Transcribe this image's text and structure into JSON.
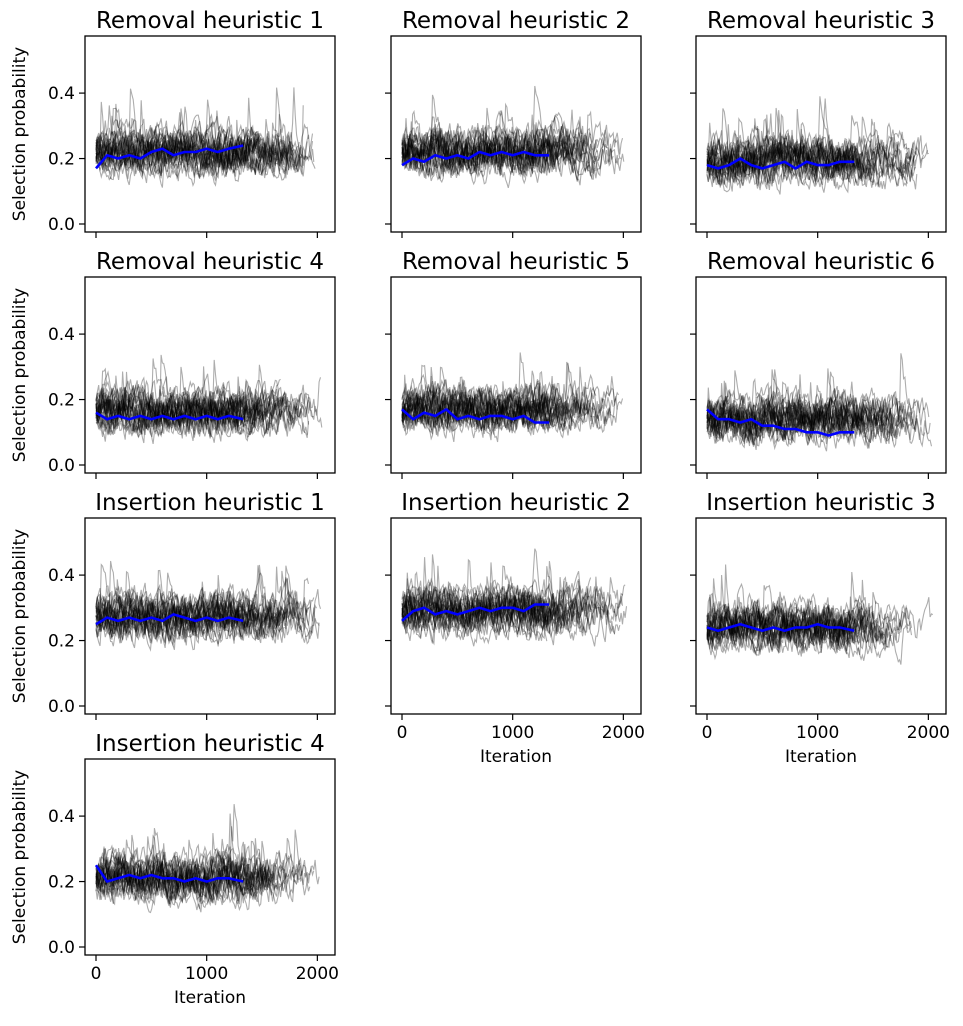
{
  "figure": {
    "ylabel": "Selection probability",
    "xlabel": "Iteration"
  },
  "chart_data": [
    {
      "type": "line",
      "title": "Removal heuristic 1",
      "xlim": [
        0,
        2060
      ],
      "ylim": [
        0,
        0.55
      ],
      "xticks": [
        0,
        1000,
        2000
      ],
      "yticks": [
        0.0,
        0.2,
        0.4
      ],
      "show_xtick_labels": false,
      "show_ytick_labels": true,
      "xlabel": "",
      "ylabel": "Selection probability",
      "series": [
        {
          "color": "#0000ff",
          "x": [
            0,
            100,
            200,
            300,
            400,
            500,
            600,
            700,
            800,
            900,
            1000,
            1100,
            1200,
            1330
          ],
          "y": [
            0.17,
            0.21,
            0.2,
            0.21,
            0.2,
            0.22,
            0.23,
            0.21,
            0.22,
            0.22,
            0.23,
            0.22,
            0.23,
            0.24
          ]
        }
      ],
      "background_runs": {
        "color": "#000000",
        "mean": 0.22,
        "spread": 0.05,
        "x_max": 2050,
        "min_value": 0.03
      }
    },
    {
      "type": "line",
      "title": "Removal heuristic 2",
      "xlim": [
        0,
        2060
      ],
      "ylim": [
        0,
        0.55
      ],
      "xticks": [
        0,
        1000,
        2000
      ],
      "yticks": [
        0.0,
        0.2,
        0.4
      ],
      "show_xtick_labels": false,
      "show_ytick_labels": false,
      "xlabel": "",
      "ylabel": "",
      "series": [
        {
          "color": "#0000ff",
          "x": [
            0,
            100,
            200,
            300,
            400,
            500,
            600,
            700,
            800,
            900,
            1000,
            1100,
            1200,
            1330
          ],
          "y": [
            0.18,
            0.2,
            0.19,
            0.21,
            0.2,
            0.21,
            0.2,
            0.22,
            0.21,
            0.22,
            0.21,
            0.22,
            0.21,
            0.21
          ]
        }
      ],
      "background_runs": {
        "color": "#000000",
        "mean": 0.22,
        "spread": 0.05,
        "x_max": 2050,
        "min_value": 0.0
      }
    },
    {
      "type": "line",
      "title": "Removal heuristic 3",
      "xlim": [
        0,
        2060
      ],
      "ylim": [
        0,
        0.55
      ],
      "xticks": [
        0,
        1000,
        2000
      ],
      "yticks": [
        0.0,
        0.2,
        0.4
      ],
      "show_xtick_labels": false,
      "show_ytick_labels": false,
      "xlabel": "",
      "ylabel": "",
      "series": [
        {
          "color": "#0000ff",
          "x": [
            0,
            100,
            200,
            300,
            400,
            500,
            600,
            700,
            800,
            900,
            1000,
            1100,
            1200,
            1330
          ],
          "y": [
            0.18,
            0.17,
            0.18,
            0.2,
            0.18,
            0.17,
            0.18,
            0.19,
            0.17,
            0.19,
            0.18,
            0.18,
            0.19,
            0.19
          ]
        }
      ],
      "background_runs": {
        "color": "#000000",
        "mean": 0.19,
        "spread": 0.05,
        "x_max": 2050,
        "min_value": 0.05
      }
    },
    {
      "type": "line",
      "title": "Removal heuristic 4",
      "xlim": [
        0,
        2060
      ],
      "ylim": [
        0,
        0.55
      ],
      "xticks": [
        0,
        1000,
        2000
      ],
      "yticks": [
        0.0,
        0.2,
        0.4
      ],
      "show_xtick_labels": false,
      "show_ytick_labels": true,
      "xlabel": "",
      "ylabel": "Selection probability",
      "series": [
        {
          "color": "#0000ff",
          "x": [
            0,
            100,
            200,
            300,
            400,
            500,
            600,
            700,
            800,
            900,
            1000,
            1100,
            1200,
            1330
          ],
          "y": [
            0.16,
            0.14,
            0.15,
            0.14,
            0.15,
            0.14,
            0.15,
            0.14,
            0.15,
            0.14,
            0.15,
            0.14,
            0.15,
            0.14
          ]
        }
      ],
      "background_runs": {
        "color": "#000000",
        "mean": 0.16,
        "spread": 0.05,
        "x_max": 2050,
        "min_value": 0.0
      }
    },
    {
      "type": "line",
      "title": "Removal heuristic 5",
      "xlim": [
        0,
        2060
      ],
      "ylim": [
        0,
        0.55
      ],
      "xticks": [
        0,
        1000,
        2000
      ],
      "yticks": [
        0.0,
        0.2,
        0.4
      ],
      "show_xtick_labels": false,
      "show_ytick_labels": false,
      "xlabel": "",
      "ylabel": "",
      "series": [
        {
          "color": "#0000ff",
          "x": [
            0,
            100,
            200,
            300,
            400,
            500,
            600,
            700,
            800,
            900,
            1000,
            1100,
            1200,
            1330
          ],
          "y": [
            0.17,
            0.14,
            0.16,
            0.15,
            0.17,
            0.14,
            0.15,
            0.14,
            0.15,
            0.15,
            0.14,
            0.15,
            0.13,
            0.13
          ]
        }
      ],
      "background_runs": {
        "color": "#000000",
        "mean": 0.17,
        "spread": 0.05,
        "x_max": 2050,
        "min_value": 0.0
      }
    },
    {
      "type": "line",
      "title": "Removal heuristic 6",
      "xlim": [
        0,
        2060
      ],
      "ylim": [
        0,
        0.55
      ],
      "xticks": [
        0,
        1000,
        2000
      ],
      "yticks": [
        0.0,
        0.2,
        0.4
      ],
      "show_xtick_labels": false,
      "show_ytick_labels": false,
      "xlabel": "",
      "ylabel": "",
      "series": [
        {
          "color": "#0000ff",
          "x": [
            0,
            100,
            200,
            300,
            400,
            500,
            600,
            700,
            800,
            900,
            1000,
            1100,
            1200,
            1330
          ],
          "y": [
            0.17,
            0.14,
            0.14,
            0.13,
            0.14,
            0.12,
            0.12,
            0.11,
            0.11,
            0.1,
            0.1,
            0.09,
            0.1,
            0.1
          ]
        }
      ],
      "background_runs": {
        "color": "#000000",
        "mean": 0.14,
        "spread": 0.05,
        "x_max": 2050,
        "min_value": 0.0
      }
    },
    {
      "type": "line",
      "title": "Insertion heuristic 1",
      "xlim": [
        0,
        2060
      ],
      "ylim": [
        0,
        0.55
      ],
      "xticks": [
        0,
        1000,
        2000
      ],
      "yticks": [
        0.0,
        0.2,
        0.4
      ],
      "show_xtick_labels": false,
      "show_ytick_labels": true,
      "xlabel": "",
      "ylabel": "Selection probability",
      "series": [
        {
          "color": "#0000ff",
          "x": [
            0,
            100,
            200,
            300,
            400,
            500,
            600,
            700,
            800,
            900,
            1000,
            1100,
            1200,
            1330
          ],
          "y": [
            0.25,
            0.27,
            0.26,
            0.27,
            0.26,
            0.27,
            0.26,
            0.28,
            0.27,
            0.26,
            0.27,
            0.26,
            0.27,
            0.26
          ]
        }
      ],
      "background_runs": {
        "color": "#000000",
        "mean": 0.27,
        "spread": 0.05,
        "x_max": 2050,
        "min_value": 0.12
      }
    },
    {
      "type": "line",
      "title": "Insertion heuristic 2",
      "xlim": [
        0,
        2060
      ],
      "ylim": [
        0,
        0.55
      ],
      "xticks": [
        0,
        1000,
        2000
      ],
      "yticks": [
        0.0,
        0.2,
        0.4
      ],
      "show_xtick_labels": true,
      "show_ytick_labels": false,
      "xlabel": "Iteration",
      "ylabel": "",
      "series": [
        {
          "color": "#0000ff",
          "x": [
            0,
            100,
            200,
            300,
            400,
            500,
            600,
            700,
            800,
            900,
            1000,
            1100,
            1200,
            1330
          ],
          "y": [
            0.26,
            0.29,
            0.3,
            0.28,
            0.29,
            0.28,
            0.29,
            0.3,
            0.29,
            0.3,
            0.3,
            0.29,
            0.31,
            0.31
          ]
        }
      ],
      "background_runs": {
        "color": "#000000",
        "mean": 0.29,
        "spread": 0.05,
        "x_max": 2050,
        "min_value": 0.15
      }
    },
    {
      "type": "line",
      "title": "Insertion heuristic 3",
      "xlim": [
        0,
        2060
      ],
      "ylim": [
        0,
        0.55
      ],
      "xticks": [
        0,
        1000,
        2000
      ],
      "yticks": [
        0.0,
        0.2,
        0.4
      ],
      "show_xtick_labels": true,
      "show_ytick_labels": false,
      "xlabel": "Iteration",
      "ylabel": "",
      "series": [
        {
          "color": "#0000ff",
          "x": [
            0,
            100,
            200,
            300,
            400,
            500,
            600,
            700,
            800,
            900,
            1000,
            1100,
            1200,
            1330
          ],
          "y": [
            0.24,
            0.23,
            0.24,
            0.25,
            0.24,
            0.23,
            0.24,
            0.23,
            0.24,
            0.24,
            0.25,
            0.24,
            0.24,
            0.23
          ]
        }
      ],
      "background_runs": {
        "color": "#000000",
        "mean": 0.24,
        "spread": 0.05,
        "x_max": 2050,
        "min_value": 0.08
      }
    },
    {
      "type": "line",
      "title": "Insertion heuristic 4",
      "xlim": [
        0,
        2060
      ],
      "ylim": [
        0,
        0.55
      ],
      "xticks": [
        0,
        1000,
        2000
      ],
      "yticks": [
        0.0,
        0.2,
        0.4
      ],
      "show_xtick_labels": true,
      "show_ytick_labels": true,
      "xlabel": "Iteration",
      "ylabel": "Selection probability",
      "series": [
        {
          "color": "#0000ff",
          "x": [
            0,
            100,
            200,
            300,
            400,
            500,
            600,
            700,
            800,
            900,
            1000,
            1100,
            1200,
            1330
          ],
          "y": [
            0.25,
            0.2,
            0.21,
            0.22,
            0.21,
            0.22,
            0.21,
            0.21,
            0.2,
            0.21,
            0.2,
            0.21,
            0.21,
            0.2
          ]
        }
      ],
      "background_runs": {
        "color": "#000000",
        "mean": 0.21,
        "spread": 0.05,
        "x_max": 2050,
        "min_value": 0.08
      }
    }
  ]
}
